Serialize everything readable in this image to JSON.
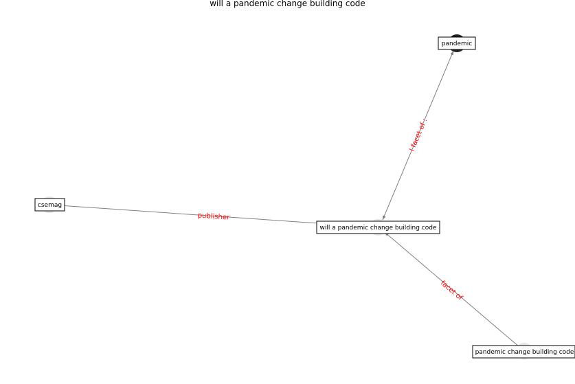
{
  "title": "will a pandemic change building code",
  "nodes": {
    "pandemic": {
      "label": "pandemic",
      "color": "#222222"
    },
    "center": {
      "label": "will a pandemic change building code",
      "color": "#e6e6e6"
    },
    "csemag": {
      "label": "csemag",
      "color": "#e6e6e6"
    },
    "pcbc": {
      "label": "pandemic change building code",
      "color": "#e6e6e6"
    }
  },
  "edges": {
    "publisher": {
      "label": "publisher"
    },
    "facet_of_pandemic": {
      "label": "l facet of :"
    },
    "facet_of": {
      "label": "facet of"
    }
  },
  "colors": {
    "edge": "#808080",
    "edge_label": "#ff0000"
  }
}
